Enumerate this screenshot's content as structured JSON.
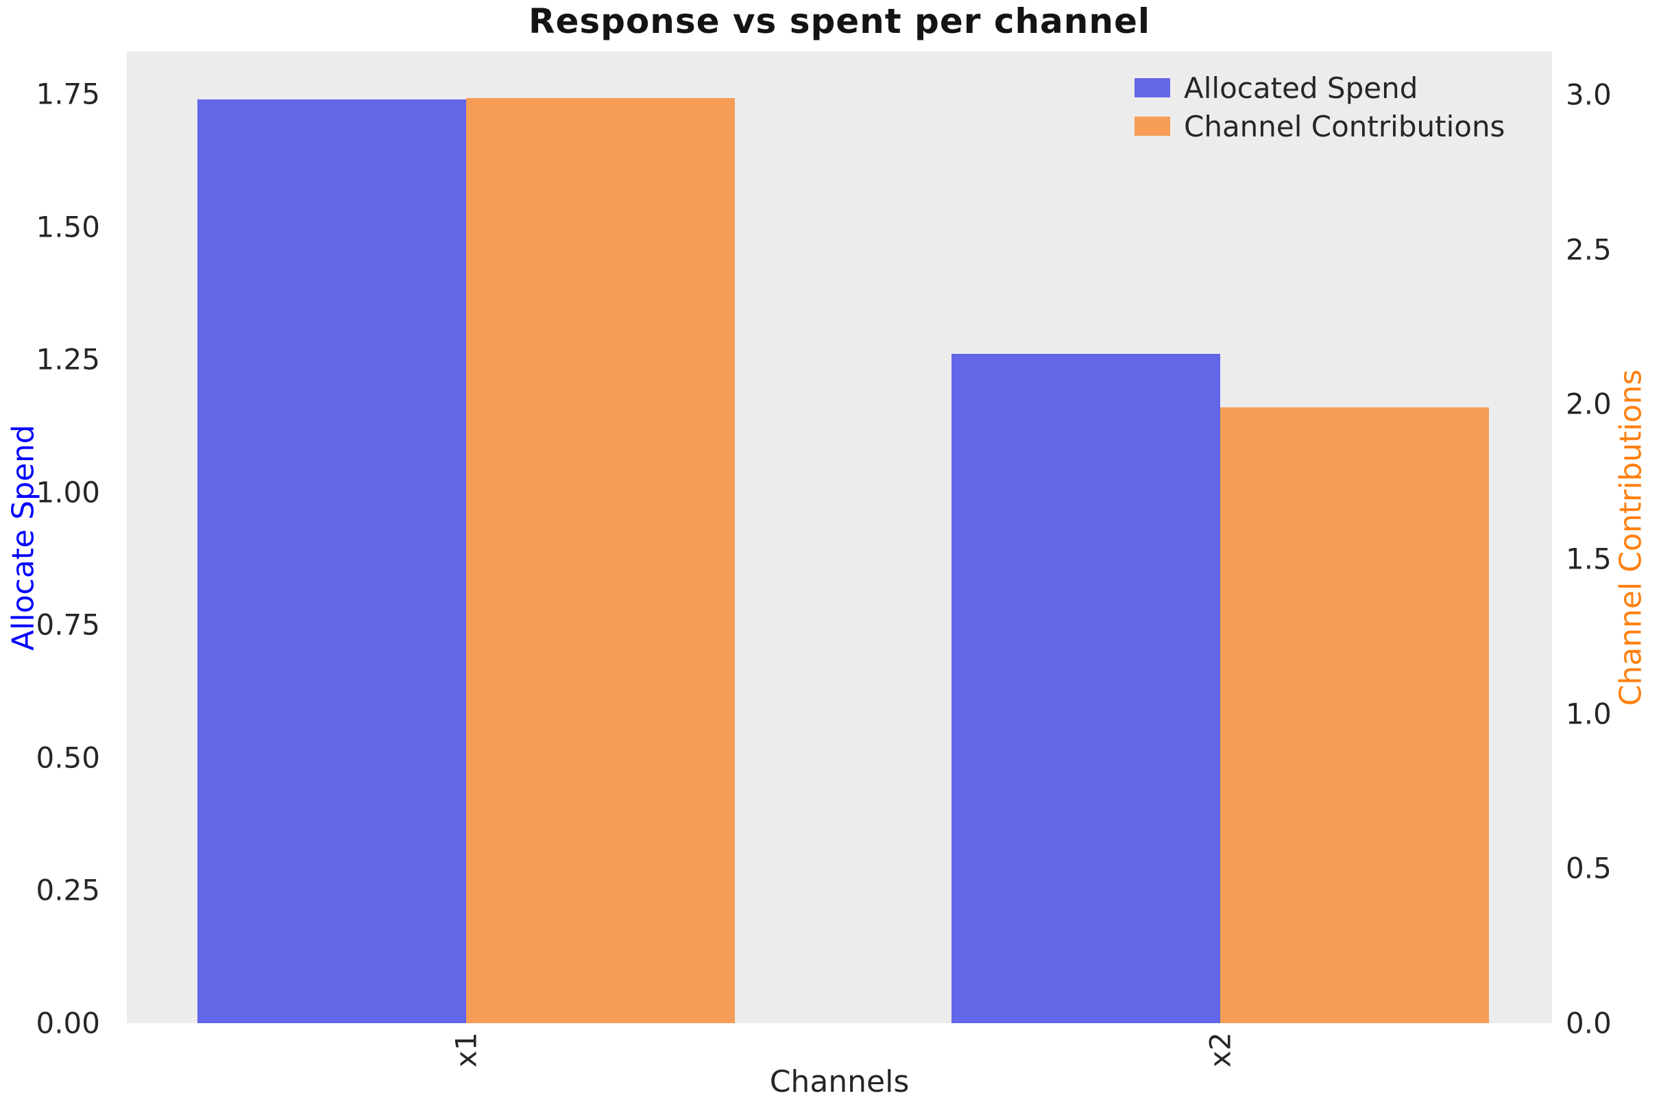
{
  "chart_data": {
    "type": "bar",
    "title": "Response vs spent per channel",
    "xlabel": "Channels",
    "ylabel_left": "Allocate Spend",
    "ylabel_right": "Channel Contributions",
    "categories": [
      "x1",
      "x2"
    ],
    "series": [
      {
        "name": "Allocated Spend",
        "axis": "left",
        "color": "#6266e7",
        "values": [
          1.74,
          1.26
        ]
      },
      {
        "name": "Channel Contributions",
        "axis": "right",
        "color": "#f59d56",
        "values": [
          2.99,
          1.99
        ]
      }
    ],
    "left_ticks": [
      "0.00",
      "0.25",
      "0.50",
      "0.75",
      "1.00",
      "1.25",
      "1.50",
      "1.75"
    ],
    "right_ticks": [
      "0.0",
      "0.5",
      "1.0",
      "1.5",
      "2.0",
      "2.5",
      "3.0"
    ],
    "ylim_left": [
      0,
      1.83
    ],
    "ylim_right": [
      0,
      3.14
    ],
    "xlim": [
      -0.45,
      1.44
    ],
    "bar_width_units": 0.356,
    "legend_position": "upper right",
    "grid": false,
    "colors": {
      "plot_background": "#ececec",
      "figure_background": "#ffffff",
      "left_axis_label": "#0000ff",
      "right_axis_label": "#ff7f0e",
      "tick_text": "#262626",
      "title_text": "#141414"
    }
  }
}
